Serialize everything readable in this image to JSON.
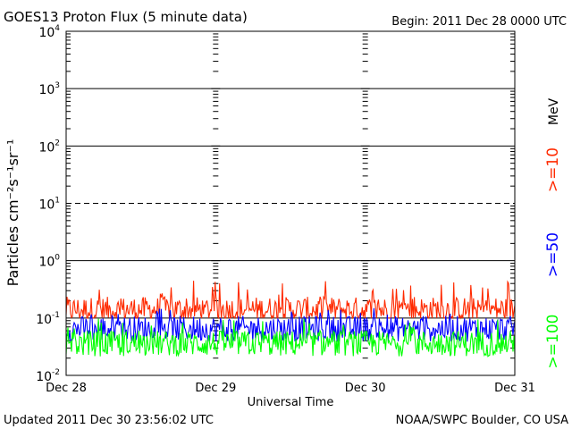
{
  "chart_data": {
    "type": "line",
    "title": "GOES13 Proton Flux (5 minute data)",
    "begin_label": "Begin: 2011 Dec 28 0000 UTC",
    "xlabel": "Universal Time",
    "ylabel": "Particles cm⁻²s⁻¹sr⁻¹",
    "y_scale": "log",
    "ylim": [
      0.01,
      10000
    ],
    "y_ticks": [
      {
        "value": 10000,
        "base": "10",
        "exp": "4"
      },
      {
        "value": 1000,
        "base": "10",
        "exp": "3"
      },
      {
        "value": 100,
        "base": "10",
        "exp": "2"
      },
      {
        "value": 10,
        "base": "10",
        "exp": "1"
      },
      {
        "value": 1,
        "base": "10",
        "exp": "0"
      },
      {
        "value": 0.1,
        "base": "10",
        "exp": "-1"
      },
      {
        "value": 0.01,
        "base": "10",
        "exp": "-2"
      }
    ],
    "x_ticks": [
      "Dec 28",
      "Dec 29",
      "Dec 30",
      "Dec 31"
    ],
    "x_range_days": [
      0,
      3
    ],
    "unit_label": "MeV",
    "grid": "solid lines at 10^3, 10^2, 10^0, 10^-1; dashed line at 10^1",
    "series": [
      {
        "name": ">=10",
        "color": "#ff2a00",
        "baseline": 0.14,
        "peak": 0.45,
        "floor": 0.1
      },
      {
        "name": ">=50",
        "color": "#0000ff",
        "baseline": 0.065,
        "peak": 0.15,
        "floor": 0.038
      },
      {
        "name": ">=100",
        "color": "#00ff00",
        "baseline": 0.036,
        "peak": 0.1,
        "floor": 0.021
      }
    ]
  },
  "footer": {
    "updated": "Updated 2011 Dec 30 23:56:02 UTC",
    "credit": "NOAA/SWPC Boulder, CO USA"
  }
}
